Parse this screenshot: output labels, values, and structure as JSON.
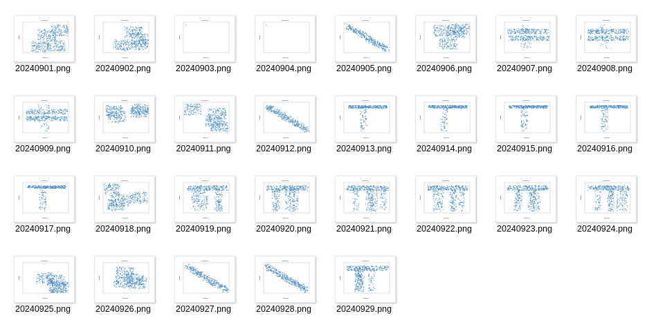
{
  "files": [
    {
      "name": "20240901.png",
      "shape": "blob"
    },
    {
      "name": "20240902.png",
      "shape": "blob"
    },
    {
      "name": "20240903.png",
      "shape": "empty"
    },
    {
      "name": "20240904.png",
      "shape": "empty"
    },
    {
      "name": "20240905.png",
      "shape": "diag"
    },
    {
      "name": "20240906.png",
      "shape": "blob"
    },
    {
      "name": "20240907.png",
      "shape": "band"
    },
    {
      "name": "20240908.png",
      "shape": "band"
    },
    {
      "name": "20240909.png",
      "shape": "band"
    },
    {
      "name": "20240910.png",
      "shape": "blob"
    },
    {
      "name": "20240911.png",
      "shape": "blob"
    },
    {
      "name": "20240912.png",
      "shape": "diag"
    },
    {
      "name": "20240913.png",
      "shape": "tline"
    },
    {
      "name": "20240914.png",
      "shape": "tline"
    },
    {
      "name": "20240915.png",
      "shape": "tline"
    },
    {
      "name": "20240916.png",
      "shape": "tline"
    },
    {
      "name": "20240917.png",
      "shape": "tline"
    },
    {
      "name": "20240918.png",
      "shape": "blob"
    },
    {
      "name": "20240919.png",
      "shape": "drip"
    },
    {
      "name": "20240920.png",
      "shape": "drip"
    },
    {
      "name": "20240921.png",
      "shape": "drip"
    },
    {
      "name": "20240922.png",
      "shape": "drip"
    },
    {
      "name": "20240923.png",
      "shape": "drip"
    },
    {
      "name": "20240924.png",
      "shape": "drip"
    },
    {
      "name": "20240925.png",
      "shape": "blob"
    },
    {
      "name": "20240926.png",
      "shape": "blob"
    },
    {
      "name": "20240927.png",
      "shape": "diag"
    },
    {
      "name": "20240928.png",
      "shape": "diag"
    },
    {
      "name": "20240929.png",
      "shape": "drip"
    }
  ],
  "plot_color": "#4a8fc6"
}
